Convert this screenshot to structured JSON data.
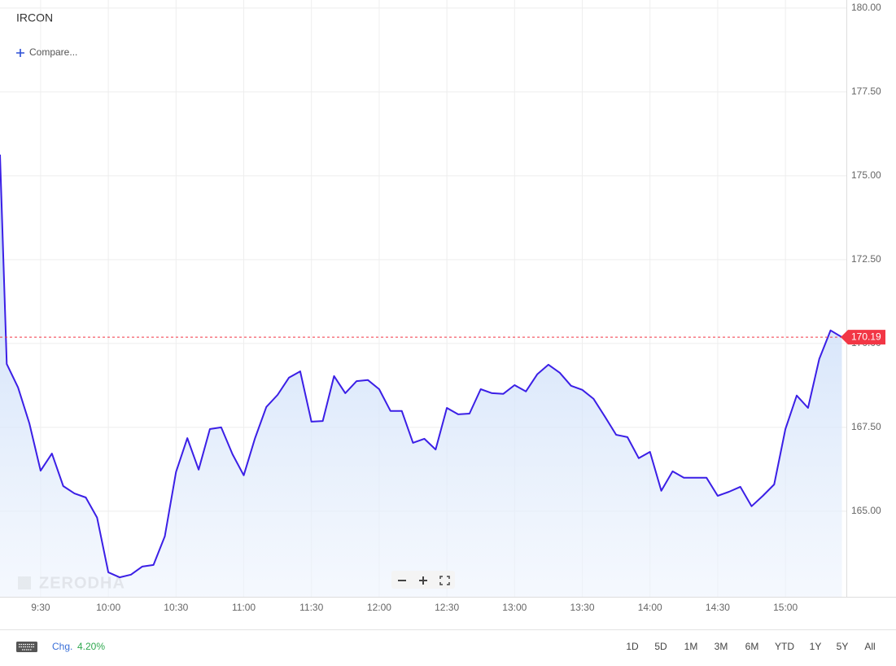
{
  "chart_data": {
    "type": "line",
    "title": "IRCON",
    "compare_label": "Compare...",
    "watermark": "ZERODHA",
    "x": [
      "9:12",
      "9:15",
      "9:20",
      "9:25",
      "9:30",
      "9:35",
      "9:40",
      "9:45",
      "9:50",
      "9:55",
      "10:00",
      "10:05",
      "10:10",
      "10:15",
      "10:20",
      "10:25",
      "10:30",
      "10:35",
      "10:40",
      "10:45",
      "10:50",
      "10:55",
      "11:00",
      "11:05",
      "11:10",
      "11:15",
      "11:20",
      "11:25",
      "11:30",
      "11:35",
      "11:40",
      "11:45",
      "11:50",
      "11:55",
      "12:00",
      "12:05",
      "12:10",
      "12:15",
      "12:20",
      "12:25",
      "12:30",
      "12:35",
      "12:40",
      "12:45",
      "12:50",
      "12:55",
      "13:00",
      "13:05",
      "13:10",
      "13:15",
      "13:20",
      "13:25",
      "13:30",
      "13:35",
      "13:40",
      "13:45",
      "13:50",
      "13:55",
      "14:00",
      "14:05",
      "14:10",
      "14:15",
      "14:20",
      "14:25",
      "14:30",
      "14:35",
      "14:40",
      "14:45",
      "14:50",
      "14:55",
      "15:00",
      "15:05",
      "15:10",
      "15:15",
      "15:20",
      "15:25"
    ],
    "series": [
      {
        "name": "IRCON",
        "color": "#3b1fe6",
        "values": [
          175.63,
          169.39,
          168.69,
          167.62,
          166.21,
          166.72,
          165.75,
          165.53,
          165.41,
          164.81,
          163.18,
          163.03,
          163.11,
          163.35,
          163.4,
          164.25,
          166.17,
          167.18,
          166.24,
          167.45,
          167.5,
          166.7,
          166.07,
          167.18,
          168.11,
          168.47,
          168.98,
          169.17,
          167.67,
          167.69,
          169.03,
          168.52,
          168.88,
          168.91,
          168.64,
          167.99,
          167.99,
          167.04,
          167.16,
          166.84,
          168.08,
          167.89,
          167.91,
          168.64,
          168.52,
          168.5,
          168.76,
          168.57,
          169.08,
          169.37,
          169.13,
          168.74,
          168.62,
          168.35,
          167.82,
          167.28,
          167.21,
          166.58,
          166.77,
          165.61,
          166.19,
          166.0,
          166.0,
          166.0,
          165.46,
          165.58,
          165.73,
          165.15,
          165.46,
          165.8,
          167.45,
          168.45,
          168.08,
          169.54,
          170.39,
          170.19
        ]
      }
    ],
    "xlim": [
      "9:12",
      "15:27"
    ],
    "xticks": [
      "9:30",
      "10:00",
      "10:30",
      "11:00",
      "11:30",
      "12:00",
      "12:30",
      "13:00",
      "13:30",
      "14:00",
      "14:30",
      "15:00"
    ],
    "ylim": [
      162.45,
      180.24
    ],
    "yticks": [
      {
        "value": 165,
        "label": "165.00"
      },
      {
        "value": 167.5,
        "label": "167.50"
      },
      {
        "value": 170,
        "label": "170.00"
      },
      {
        "value": 172.5,
        "label": "172.50"
      },
      {
        "value": 175,
        "label": "175.00"
      },
      {
        "value": 177.5,
        "label": "177.50"
      },
      {
        "value": 180,
        "label": "180.00"
      }
    ],
    "grid": true,
    "last_price": {
      "value": 170.19,
      "label": "170.19",
      "color": "#f23645"
    },
    "change_label": "Chg.",
    "change": {
      "value": 4.2,
      "label": "4.20%"
    },
    "ranges": [
      "1D",
      "5D",
      "1M",
      "3M",
      "6M",
      "YTD",
      "1Y",
      "5Y",
      "All"
    ]
  }
}
